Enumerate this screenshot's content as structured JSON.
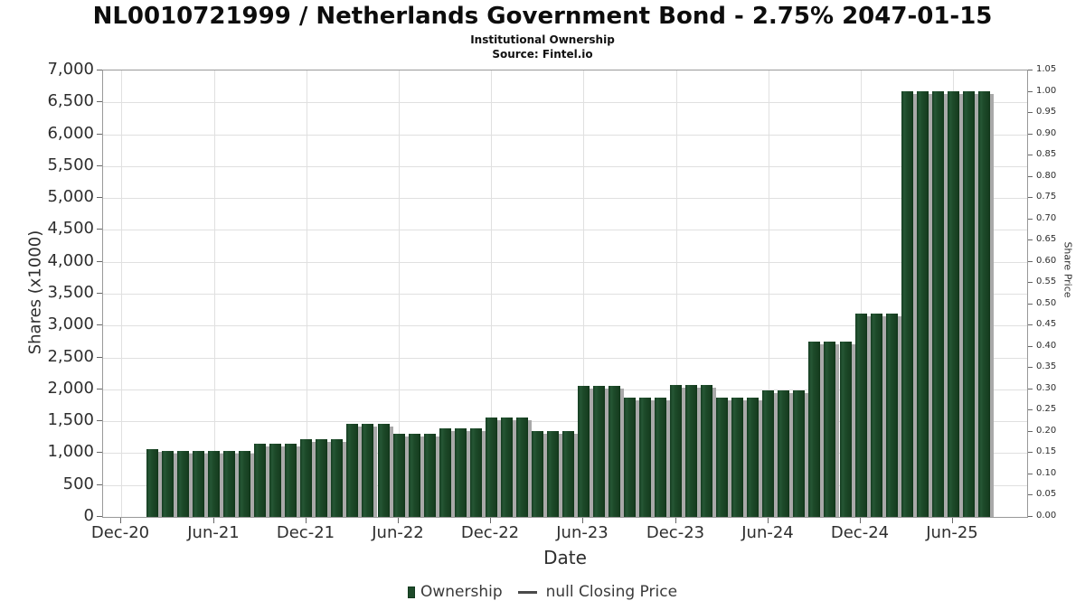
{
  "chart_data": {
    "type": "bar",
    "title": "NL0010721999 / Netherlands Government Bond - 2.75% 2047-01-15",
    "subtitle": "Institutional Ownership",
    "source": "Source: Fintel.io",
    "xlabel": "Date",
    "ylabel_left": "Shares (x1000)",
    "ylabel_right": "Share Price",
    "ylim_left": [
      0,
      7000
    ],
    "ytick_step_left": 500,
    "ylim_right": [
      0,
      1.05
    ],
    "ytick_step_right": 0.05,
    "grid": true,
    "legend_position": "bottom",
    "xtick_labels": [
      "Dec-20",
      "Jun-21",
      "Dec-21",
      "Jun-22",
      "Dec-22",
      "Jun-23",
      "Dec-23",
      "Jun-24",
      "Dec-24",
      "Jun-25"
    ],
    "xtick_month_offsets": [
      0,
      6,
      12,
      18,
      24,
      30,
      36,
      42,
      48,
      54
    ],
    "x_range_months": [
      -1.2,
      58.8
    ],
    "bar_start_month_offset": 2,
    "categories": [
      "Feb-21",
      "Mar-21",
      "Apr-21",
      "May-21",
      "Jun-21",
      "Jul-21",
      "Aug-21",
      "Sep-21",
      "Oct-21",
      "Nov-21",
      "Dec-21",
      "Jan-22",
      "Feb-22",
      "Mar-22",
      "Apr-22",
      "May-22",
      "Jun-22",
      "Jul-22",
      "Aug-22",
      "Sep-22",
      "Oct-22",
      "Nov-22",
      "Dec-22",
      "Jan-23",
      "Feb-23",
      "Mar-23",
      "Apr-23",
      "May-23",
      "Jun-23",
      "Jul-23",
      "Aug-23",
      "Sep-23",
      "Oct-23",
      "Nov-23",
      "Dec-23",
      "Jan-24",
      "Feb-24",
      "Mar-24",
      "Apr-24",
      "May-24",
      "Jun-24",
      "Jul-24",
      "Aug-24",
      "Sep-24",
      "Oct-24",
      "Nov-24",
      "Dec-24",
      "Jan-25",
      "Feb-25",
      "Mar-25",
      "Apr-25",
      "May-25",
      "Jun-25",
      "Jul-25",
      "Aug-25"
    ],
    "series": [
      {
        "name": "Ownership",
        "type": "bar",
        "color": "#1d4a29",
        "values": [
          1060,
          1030,
          1030,
          1030,
          1030,
          1030,
          1030,
          1150,
          1150,
          1150,
          1225,
          1225,
          1225,
          1460,
          1460,
          1460,
          1300,
          1300,
          1300,
          1395,
          1395,
          1395,
          1555,
          1555,
          1555,
          1350,
          1350,
          1350,
          2060,
          2060,
          2060,
          1870,
          1870,
          1870,
          2065,
          2065,
          2065,
          1875,
          1875,
          1875,
          1990,
          1990,
          1990,
          2750,
          2750,
          2750,
          3185,
          3185,
          3185,
          6670,
          6670,
          6670,
          6670,
          6670,
          6670
        ]
      },
      {
        "name": "null Closing Price",
        "type": "line",
        "color": "#4a4a4a",
        "values": []
      }
    ],
    "legend": [
      {
        "label": "Ownership",
        "symbol": "bar-square",
        "color": "#1d4a29"
      },
      {
        "label": "null Closing Price",
        "symbol": "line-dash",
        "color": "#4a4a4a"
      }
    ],
    "colors": {
      "bar": "#1d4a29",
      "bar_edge": "#123a1e",
      "bar_shadow": "#a9a9a9",
      "gridline": "#e0e0e0",
      "axis_border": "#999999",
      "tick": "#666666",
      "label_text": "#2e2e2e",
      "title_text": "#0d0d0d"
    }
  }
}
